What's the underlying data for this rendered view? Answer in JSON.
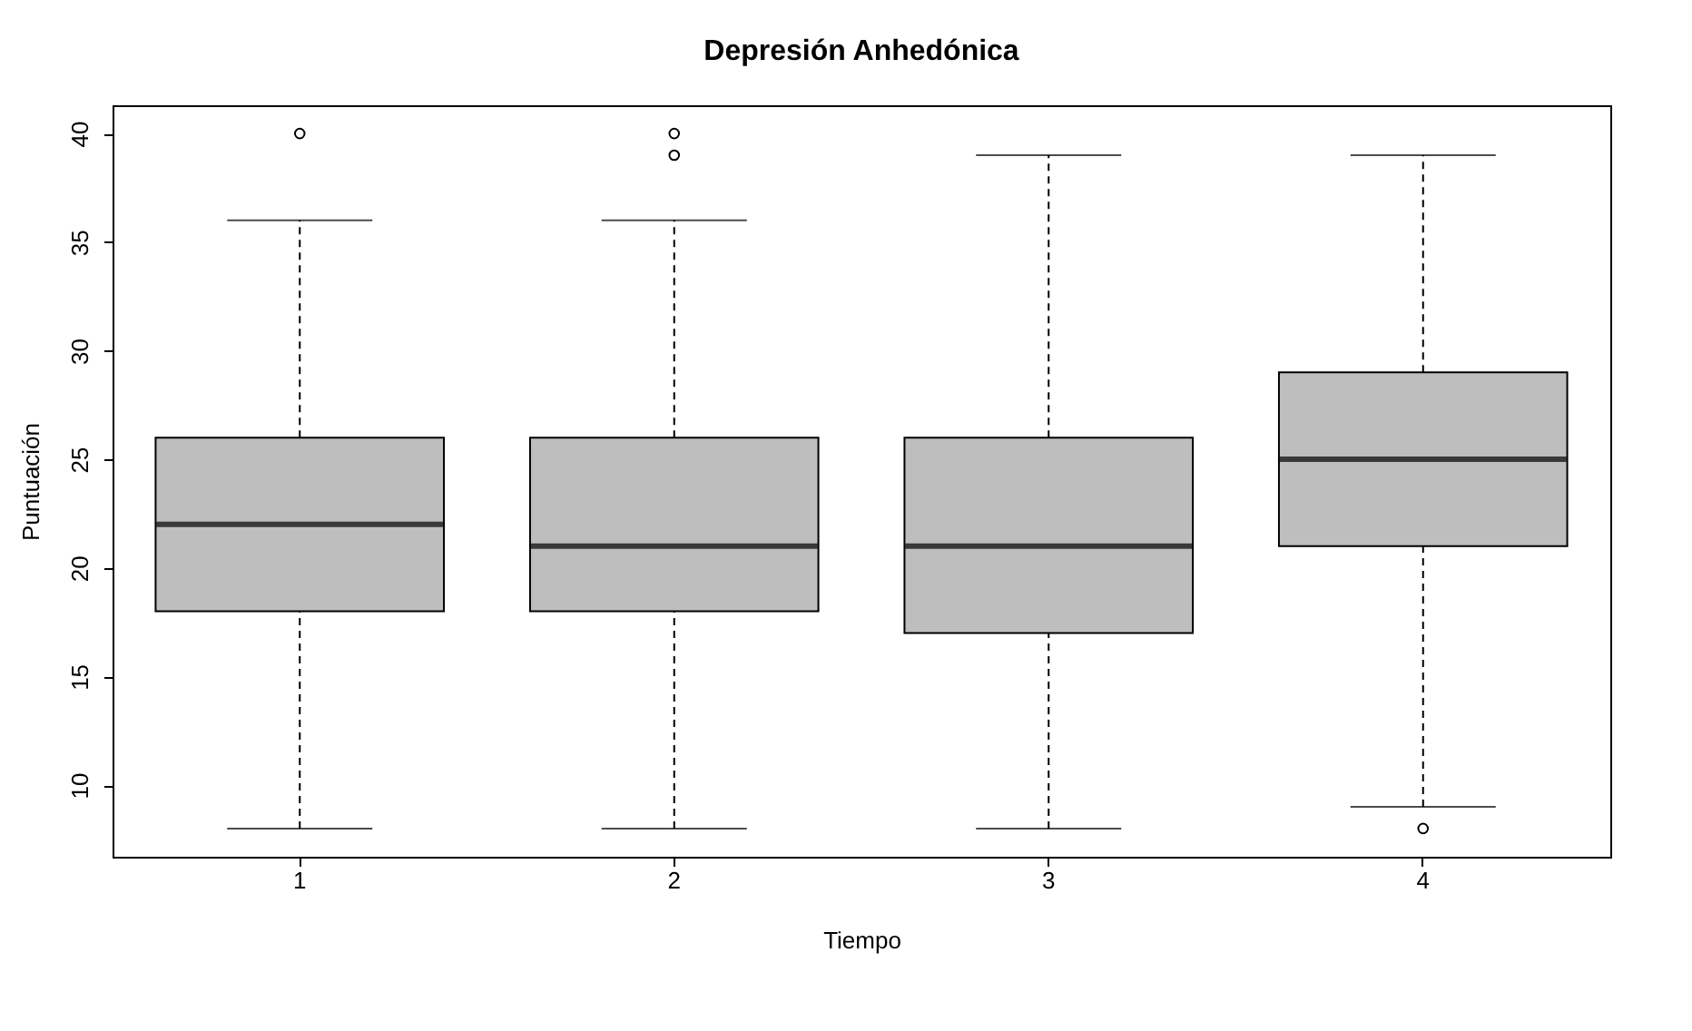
{
  "chart_data": {
    "type": "box",
    "title": "Depresión Anhedónica",
    "xlabel": "Tiempo",
    "ylabel": "Puntuación",
    "categories": [
      "1",
      "2",
      "3",
      "4"
    ],
    "boxes": [
      {
        "low": 8,
        "q1": 18,
        "median": 22,
        "q3": 26,
        "high": 36,
        "outliers": [
          40
        ]
      },
      {
        "low": 8,
        "q1": 18,
        "median": 21,
        "q3": 26,
        "high": 36,
        "outliers": [
          39,
          40
        ]
      },
      {
        "low": 8,
        "q1": 17,
        "median": 21,
        "q3": 26,
        "high": 39
      },
      {
        "low": 9,
        "q1": 21,
        "median": 25,
        "q3": 29,
        "high": 39,
        "outliers": [
          8
        ]
      }
    ],
    "color": "#bebebe",
    "ylim": [
      6.7,
      41.3
    ],
    "yticks": [
      10,
      15,
      20,
      25,
      30,
      35,
      40
    ],
    "grid": false,
    "marker": "circle"
  }
}
